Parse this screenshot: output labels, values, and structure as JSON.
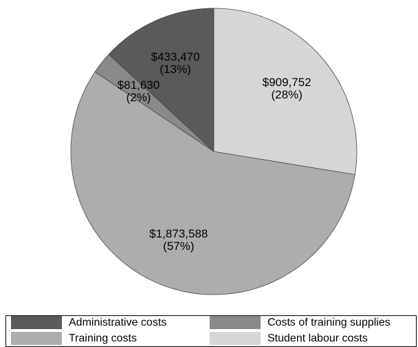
{
  "chart_data": {
    "type": "pie",
    "categories": [
      "Administrative costs",
      "Costs of training supplies",
      "Training costs",
      "Student labour costs"
    ],
    "values": [
      433470,
      81630,
      1873588,
      909752
    ],
    "value_labels": [
      "$433,470",
      "$81,630",
      "$1,873,588",
      "$909,752"
    ],
    "percent_labels": [
      "(13%)",
      "(2%)",
      "(57%)",
      "(28%)"
    ],
    "colors": [
      "#5a5a5a",
      "#8a8a8a",
      "#adadad",
      "#d6d6d6"
    ],
    "legend": "bottom"
  }
}
